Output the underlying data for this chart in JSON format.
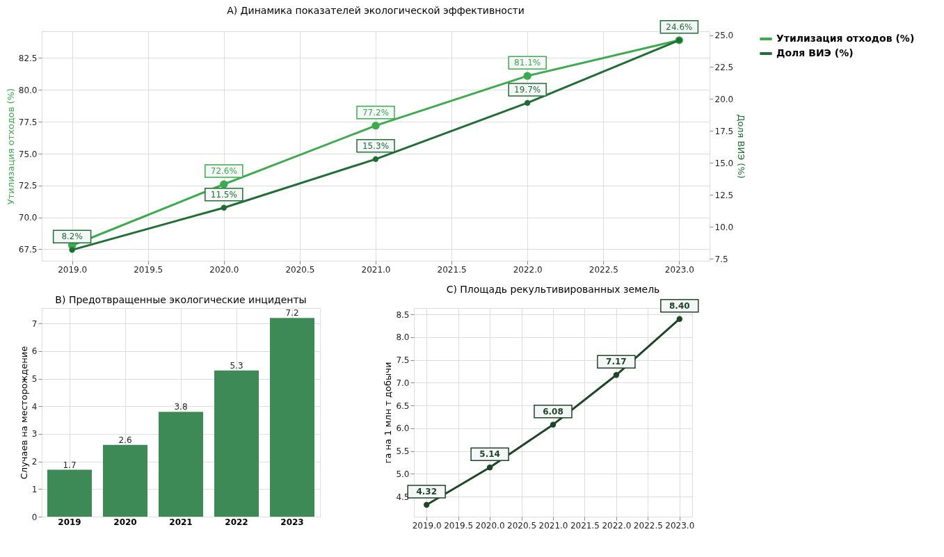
{
  "chart_data": [
    {
      "type": "line",
      "title": "A) Динамика показателей экологической эффективности",
      "ylabel": "Утилизация отходов (%)",
      "y2label": "Доля ВИЭ (%)",
      "x": [
        2019,
        2020,
        2021,
        2022,
        2023
      ],
      "series": [
        {
          "name": "Утилизация отходов (%)",
          "color": "#3cab4e",
          "values": [
            67.8,
            72.6,
            77.2,
            81.1,
            83.9
          ],
          "value_labels": [
            null,
            "72.6%",
            "77.2%",
            "81.1%",
            null
          ]
        },
        {
          "name": "Доля ВИЭ (%)",
          "color": "#1f6e33",
          "axis": "y2",
          "values": [
            8.2,
            11.5,
            15.3,
            19.7,
            24.6
          ],
          "value_labels": [
            "8.2%",
            "11.5%",
            "15.3%",
            "19.7%",
            "24.6%"
          ]
        }
      ],
      "xlim": [
        2018.8,
        2023.2
      ],
      "xticks": [
        {
          "value": 2019,
          "label": "2019.0"
        },
        2019.5,
        {
          "value": 2020,
          "label": "2020.0"
        },
        2020.5,
        {
          "value": 2021,
          "label": "2021.0"
        },
        2021.5,
        {
          "value": 2022,
          "label": "2022.0"
        },
        2022.5,
        {
          "value": 2023,
          "label": "2023.0"
        }
      ],
      "ylim": [
        66.6,
        84.6
      ],
      "yticks": [
        {
          "value": 67.5,
          "label": "67.5"
        },
        {
          "value": 70,
          "label": "70.0"
        },
        {
          "value": 72.5,
          "label": "72.5"
        },
        {
          "value": 75,
          "label": "75.0"
        },
        {
          "value": 77.5,
          "label": "77.5"
        },
        {
          "value": 80,
          "label": "80.0"
        },
        {
          "value": 82.5,
          "label": "82.5"
        }
      ],
      "y2lim": [
        7.35,
        25.3
      ],
      "y2ticks": [
        {
          "value": 7.5,
          "label": "7.5"
        },
        {
          "value": 10,
          "label": "10.0"
        },
        {
          "value": 12.5,
          "label": "12.5"
        },
        {
          "value": 15,
          "label": "15.0"
        },
        {
          "value": 17.5,
          "label": "17.5"
        },
        {
          "value": 20,
          "label": "20.0"
        },
        {
          "value": 22.5,
          "label": "22.5"
        },
        {
          "value": 25,
          "label": "25.0"
        }
      ],
      "grid": true,
      "legend": "right",
      "marker": "circle",
      "line_style": "solid"
    },
    {
      "type": "bar",
      "title": "B) Предотвращенные экологические инциденты",
      "ylabel": "Случаев на месторождение",
      "categories": [
        "2019",
        "2020",
        "2021",
        "2022",
        "2023"
      ],
      "values": [
        1.7,
        2.6,
        3.8,
        5.3,
        7.2
      ],
      "color": "#3d8a57",
      "ylim": [
        0,
        7.56
      ],
      "yticks": [
        0,
        1,
        2,
        3,
        4,
        5,
        6,
        7
      ],
      "grid": true,
      "data_labels": true
    },
    {
      "type": "line",
      "title": "C) Площадь рекультивированных земель",
      "ylabel": "га на 1 млн т добычи",
      "x": [
        2019,
        2020,
        2021,
        2022,
        2023
      ],
      "values": [
        4.32,
        5.14,
        6.08,
        7.17,
        8.4
      ],
      "value_labels": [
        "4.32",
        "5.14",
        "6.08",
        "7.17",
        "8.40"
      ],
      "color": "#1d4526",
      "xlim": [
        2018.8,
        2023.2
      ],
      "xticks": [
        {
          "value": 2019,
          "label": "2019.0"
        },
        2019.5,
        {
          "value": 2020,
          "label": "2020.0"
        },
        2020.5,
        {
          "value": 2021,
          "label": "2021.0"
        },
        2021.5,
        {
          "value": 2022,
          "label": "2022.0"
        },
        2022.5,
        {
          "value": 2023,
          "label": "2023.0"
        }
      ],
      "ylim": [
        4.06,
        8.64
      ],
      "yticks": [
        4.5,
        {
          "value": 5,
          "label": "5.0"
        },
        5.5,
        {
          "value": 6,
          "label": "6.0"
        },
        6.5,
        {
          "value": 7,
          "label": "7.0"
        },
        7.5,
        {
          "value": 8,
          "label": "8.0"
        },
        8.5
      ],
      "grid": true,
      "marker": "circle",
      "line_style": "solid"
    }
  ]
}
